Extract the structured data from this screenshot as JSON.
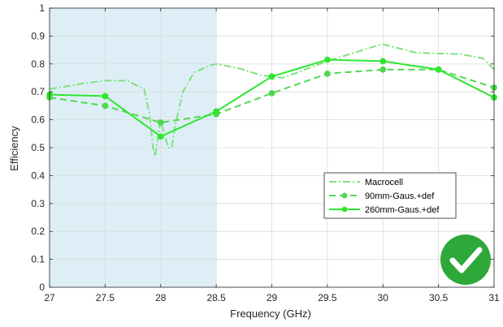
{
  "chart_data": {
    "type": "line",
    "xlabel": "Frequency (GHz)",
    "ylabel": "Efficiency",
    "xlim": [
      27,
      31
    ],
    "ylim": [
      0,
      1
    ],
    "xticks": [
      "27",
      "27.5",
      "28",
      "28.5",
      "29",
      "29.5",
      "30",
      "30.5",
      "31"
    ],
    "yticks": [
      "0",
      "0.1",
      "0.2",
      "0.3",
      "0.4",
      "0.5",
      "0.6",
      "0.7",
      "0.8",
      "0.9",
      "1"
    ],
    "grid": true,
    "shaded_band": {
      "x_from": 27,
      "x_to": 28.5,
      "color": "#deeef7"
    },
    "legend_position": "lower-right",
    "series": [
      {
        "name": "Macrocell",
        "style": "dash-dot",
        "color": "#7fe27f",
        "x": [
          27,
          27.3,
          27.5,
          27.7,
          27.85,
          27.9,
          27.93,
          27.95,
          27.98,
          28.0,
          28.03,
          28.07,
          28.1,
          28.13,
          28.2,
          28.3,
          28.45,
          28.5,
          28.7,
          28.9,
          29.1,
          29.5,
          29.9,
          30.0,
          30.3,
          30.7,
          30.9,
          31
        ],
        "y": [
          0.71,
          0.73,
          0.74,
          0.74,
          0.71,
          0.62,
          0.5,
          0.47,
          0.55,
          0.6,
          0.55,
          0.5,
          0.5,
          0.58,
          0.7,
          0.77,
          0.795,
          0.8,
          0.785,
          0.76,
          0.75,
          0.81,
          0.86,
          0.87,
          0.84,
          0.835,
          0.82,
          0.78
        ]
      },
      {
        "name": "90mm-Gaus.+def",
        "style": "dashed",
        "marker": "circle",
        "color": "#4fd84f",
        "x": [
          27,
          27.5,
          28,
          28.5,
          29,
          29.5,
          30,
          30.5,
          31
        ],
        "y": [
          0.68,
          0.65,
          0.59,
          0.62,
          0.695,
          0.765,
          0.78,
          0.78,
          0.715
        ]
      },
      {
        "name": "260mm-Gaus.+def",
        "style": "solid",
        "marker": "circle",
        "color": "#2ee62e",
        "x": [
          27,
          27.5,
          28,
          28.5,
          29,
          29.5,
          30,
          30.5,
          31
        ],
        "y": [
          0.69,
          0.685,
          0.54,
          0.63,
          0.755,
          0.815,
          0.81,
          0.78,
          0.68
        ]
      }
    ]
  },
  "badge": {
    "icon": "check-icon",
    "color": "#2fa83a"
  },
  "colors": {
    "axis": "#262626",
    "grid": "#dcdcdc"
  }
}
